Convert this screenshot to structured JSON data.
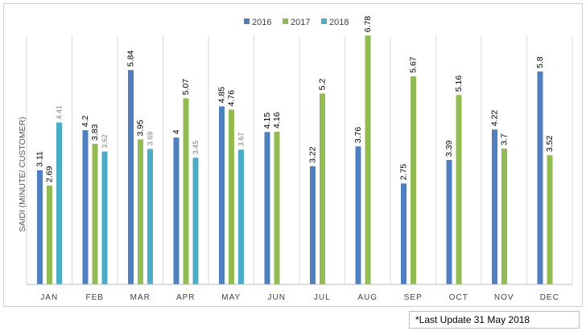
{
  "chart_data": {
    "type": "bar",
    "title": "",
    "xlabel": "",
    "ylabel": "SAIDI (MINUTE/ CUSTOMER)",
    "ylim": [
      0,
      7.2
    ],
    "grid": "vertical separators between months",
    "legend_position": "top-center",
    "categories": [
      "JAN",
      "FEB",
      "MAR",
      "APR",
      "MAY",
      "JUN",
      "JUL",
      "AUG",
      "SEP",
      "OCT",
      "NOV",
      "DEC"
    ],
    "series": [
      {
        "name": "2016",
        "color": "#4f7fbf",
        "values": [
          3.11,
          4.2,
          5.84,
          4,
          4.85,
          4.15,
          3.22,
          3.76,
          2.75,
          3.39,
          4.22,
          5.8
        ],
        "labels": [
          "3.11",
          "4.2",
          "5.84",
          "4",
          "4.85",
          "4.15",
          "3.22",
          "3.76",
          "2.75",
          "3.39",
          "4.22",
          "5.8"
        ]
      },
      {
        "name": "2017",
        "color": "#92bb52",
        "values": [
          2.69,
          3.83,
          3.95,
          5.07,
          4.76,
          4.16,
          5.2,
          6.78,
          5.67,
          5.16,
          3.7,
          3.52
        ],
        "labels": [
          "2.69",
          "3.83",
          "3.95",
          "5.07",
          "4.76",
          "4.16",
          "5.2",
          "6.78",
          "5.67",
          "5.16",
          "3.7",
          "3.52"
        ]
      },
      {
        "name": "2018",
        "color": "#4bacc6",
        "values": [
          4.41,
          3.62,
          3.69,
          3.45,
          3.67,
          null,
          null,
          null,
          null,
          null,
          null,
          null
        ],
        "labels": [
          "4.41",
          "3.62",
          "3.69",
          "3.45",
          "3.67",
          null,
          null,
          null,
          null,
          null,
          null,
          null
        ]
      }
    ]
  },
  "footnote": "*Last Update 31 May 2018"
}
